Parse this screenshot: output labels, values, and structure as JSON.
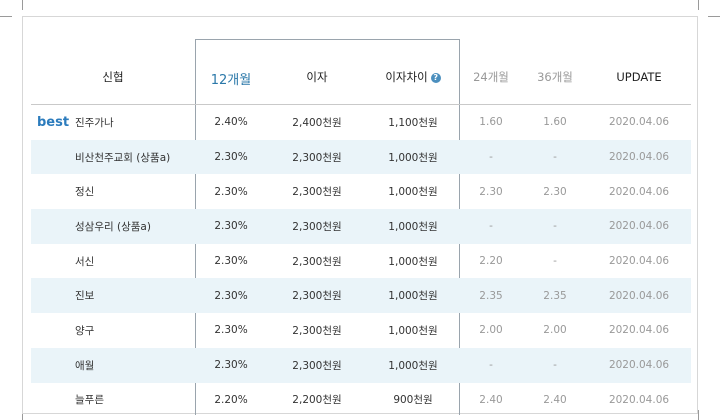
{
  "headers": {
    "name": "신협",
    "m12": "12개월",
    "interest": "이자",
    "diff": "이자차이",
    "m24": "24개월",
    "m36": "36개월",
    "update": "UPDATE"
  },
  "best_badge": "best",
  "rows": [
    {
      "name": "진주가나",
      "rate12": "2.40%",
      "interest": "2,400천원",
      "diff": "1,100천원",
      "m24": "1.60",
      "m36": "1.60",
      "update": "2020.04.06"
    },
    {
      "name": "비산천주교회 (상품a)",
      "rate12": "2.30%",
      "interest": "2,300천원",
      "diff": "1,000천원",
      "m24": "-",
      "m36": "-",
      "update": "2020.04.06"
    },
    {
      "name": "정신",
      "rate12": "2.30%",
      "interest": "2,300천원",
      "diff": "1,000천원",
      "m24": "2.30",
      "m36": "2.30",
      "update": "2020.04.06"
    },
    {
      "name": "성삼우리 (상품a)",
      "rate12": "2.30%",
      "interest": "2,300천원",
      "diff": "1,000천원",
      "m24": "-",
      "m36": "-",
      "update": "2020.04.06"
    },
    {
      "name": "서신",
      "rate12": "2.30%",
      "interest": "2,300천원",
      "diff": "1,000천원",
      "m24": "2.20",
      "m36": "-",
      "update": "2020.04.06"
    },
    {
      "name": "진보",
      "rate12": "2.30%",
      "interest": "2,300천원",
      "diff": "1,000천원",
      "m24": "2.35",
      "m36": "2.35",
      "update": "2020.04.06"
    },
    {
      "name": "양구",
      "rate12": "2.30%",
      "interest": "2,300천원",
      "diff": "1,000천원",
      "m24": "2.00",
      "m36": "2.00",
      "update": "2020.04.06"
    },
    {
      "name": "애월",
      "rate12": "2.30%",
      "interest": "2,300천원",
      "diff": "1,000천원",
      "m24": "-",
      "m36": "-",
      "update": "2020.04.06"
    },
    {
      "name": "늘푸른",
      "rate12": "2.20%",
      "interest": "2,200천원",
      "diff": "900천원",
      "m24": "2.40",
      "m36": "2.40",
      "update": "2020.04.06"
    }
  ]
}
